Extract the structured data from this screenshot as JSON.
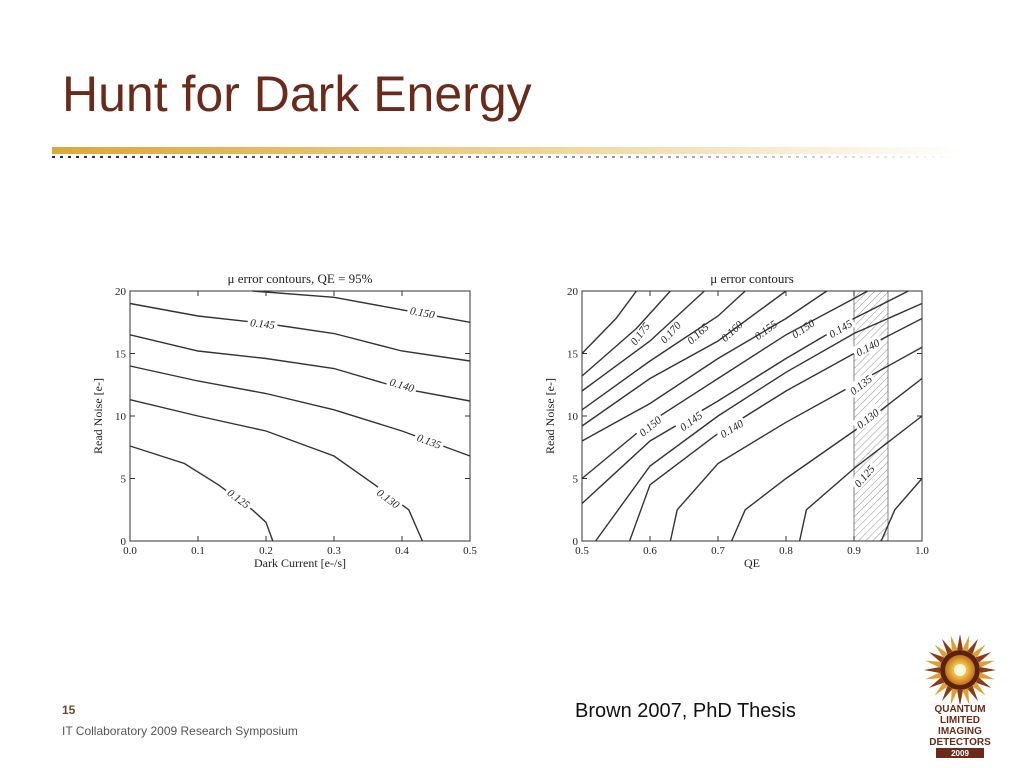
{
  "slide": {
    "title": "Hunt for Dark Energy",
    "slide_number": "15",
    "footer": "IT Collaboratory 2009 Research Symposium",
    "citation": "Brown 2007, PhD Thesis",
    "logo": {
      "lines": [
        "QUANTUM",
        "LIMITED",
        "IMAGING",
        "DETECTORS",
        "2009"
      ]
    },
    "colors": {
      "title": "#6b2a1a",
      "rule": "#d9b04a",
      "logo_brown": "#6b2a1a",
      "logo_gold": "#e0a030"
    }
  },
  "chart_data": [
    {
      "type": "contour",
      "title": "μ error contours, QE = 95%",
      "xlabel": "Dark Current [e-/s]",
      "ylabel": "Read Noise [e-]",
      "xlim": [
        0.0,
        0.5
      ],
      "ylim": [
        0,
        20
      ],
      "xticks": [
        "0.0",
        "0.1",
        "0.2",
        "0.3",
        "0.4",
        "0.5"
      ],
      "yticks": [
        "0",
        "5",
        "10",
        "15",
        "20"
      ],
      "contours": [
        {
          "level": "0.150",
          "points": [
            [
              0.18,
              20.0
            ],
            [
              0.3,
              19.5
            ],
            [
              0.4,
              18.5
            ],
            [
              0.5,
              17.5
            ]
          ],
          "label": [
            0.43,
            18.3
          ]
        },
        {
          "level": "0.145",
          "points": [
            [
              0.0,
              19.0
            ],
            [
              0.1,
              18.0
            ],
            [
              0.2,
              17.4
            ],
            [
              0.3,
              16.6
            ],
            [
              0.4,
              15.2
            ],
            [
              0.5,
              14.4
            ]
          ],
          "label": [
            0.195,
            17.4
          ]
        },
        {
          "level": "0.140",
          "points": [
            [
              0.0,
              16.5
            ],
            [
              0.1,
              15.2
            ],
            [
              0.2,
              14.6
            ],
            [
              0.3,
              13.8
            ],
            [
              0.4,
              12.2
            ],
            [
              0.5,
              11.2
            ]
          ],
          "label": [
            0.4,
            12.5
          ]
        },
        {
          "level": "0.135",
          "points": [
            [
              0.0,
              14.0
            ],
            [
              0.1,
              12.8
            ],
            [
              0.2,
              11.8
            ],
            [
              0.3,
              10.5
            ],
            [
              0.4,
              8.8
            ],
            [
              0.5,
              6.8
            ]
          ],
          "label": [
            0.44,
            8.0
          ]
        },
        {
          "level": "0.130",
          "points": [
            [
              0.0,
              11.3
            ],
            [
              0.1,
              10.0
            ],
            [
              0.2,
              8.8
            ],
            [
              0.3,
              6.8
            ],
            [
              0.36,
              4.5
            ],
            [
              0.41,
              2.5
            ],
            [
              0.43,
              0.0
            ]
          ],
          "label": [
            0.38,
            3.4
          ]
        },
        {
          "level": "0.125",
          "points": [
            [
              0.0,
              7.6
            ],
            [
              0.08,
              6.2
            ],
            [
              0.13,
              4.5
            ],
            [
              0.18,
              2.5
            ],
            [
              0.2,
              1.5
            ],
            [
              0.21,
              0.0
            ]
          ],
          "label": [
            0.16,
            3.4
          ]
        }
      ]
    },
    {
      "type": "contour",
      "title": "μ error contours",
      "xlabel": "QE",
      "ylabel": "Read Noise [e-]",
      "xlim": [
        0.5,
        1.0
      ],
      "ylim": [
        0,
        20
      ],
      "xticks": [
        "0.5",
        "0.6",
        "0.7",
        "0.8",
        "0.9",
        "1.0"
      ],
      "yticks": [
        "0",
        "5",
        "10",
        "15",
        "20"
      ],
      "hatched_band": [
        0.9,
        0.95
      ],
      "contours": [
        {
          "level": "0.175",
          "points": [
            [
              0.5,
              15.0
            ],
            [
              0.55,
              17.8
            ],
            [
              0.58,
              20.0
            ]
          ],
          "label": [
            0.585,
            16.6
          ]
        },
        {
          "level": "0.170",
          "points": [
            [
              0.5,
              13.2
            ],
            [
              0.58,
              17.0
            ],
            [
              0.63,
              20.0
            ]
          ],
          "label": [
            0.63,
            16.7
          ]
        },
        {
          "level": "0.165",
          "points": [
            [
              0.5,
              12.0
            ],
            [
              0.6,
              16.0
            ],
            [
              0.68,
              20.0
            ]
          ],
          "label": [
            0.67,
            16.6
          ]
        },
        {
          "level": "0.160",
          "points": [
            [
              0.5,
              10.5
            ],
            [
              0.6,
              14.4
            ],
            [
              0.7,
              18.0
            ],
            [
              0.74,
              20.0
            ]
          ],
          "label": [
            0.72,
            16.8
          ]
        },
        {
          "level": "0.155",
          "points": [
            [
              0.5,
              9.2
            ],
            [
              0.6,
              13.0
            ],
            [
              0.7,
              16.0
            ],
            [
              0.8,
              20.0
            ]
          ],
          "label": [
            0.77,
            16.9
          ]
        },
        {
          "level": "0.150",
          "points": [
            [
              0.5,
              8.0
            ],
            [
              0.6,
              11.0
            ],
            [
              0.7,
              14.6
            ],
            [
              0.8,
              17.8
            ],
            [
              0.86,
              20.0
            ]
          ],
          "label": [
            0.825,
            17.0
          ]
        },
        {
          "level": "0.150",
          "points": [
            [
              0.5,
              5.0
            ],
            [
              0.6,
              9.5
            ],
            [
              0.7,
              13.0
            ],
            [
              0.8,
              16.5
            ],
            [
              0.9,
              19.4
            ],
            [
              0.92,
              20.0
            ]
          ],
          "label": [
            0.6,
            9.2
          ]
        },
        {
          "level": "0.145",
          "points": [
            [
              0.5,
              3.0
            ],
            [
              0.6,
              8.0
            ],
            [
              0.7,
              11.2
            ],
            [
              0.8,
              14.6
            ],
            [
              0.9,
              17.8
            ],
            [
              0.98,
              20.0
            ]
          ],
          "label": [
            0.88,
            17.0
          ]
        },
        {
          "level": "0.145",
          "points": [
            [
              0.52,
              0.0
            ],
            [
              0.6,
              6.0
            ],
            [
              0.7,
              10.0
            ],
            [
              0.8,
              13.5
            ],
            [
              0.9,
              16.6
            ],
            [
              1.0,
              19.0
            ]
          ],
          "label": [
            0.66,
            9.6
          ]
        },
        {
          "level": "0.140",
          "points": [
            [
              0.57,
              0.0
            ],
            [
              0.6,
              4.5
            ],
            [
              0.7,
              8.6
            ],
            [
              0.8,
              12.0
            ],
            [
              0.9,
              15.0
            ],
            [
              1.0,
              17.8
            ]
          ],
          "label": [
            0.92,
            15.5
          ]
        },
        {
          "level": "0.140",
          "points": [
            [
              0.63,
              0.0
            ],
            [
              0.64,
              2.5
            ],
            [
              0.7,
              6.2
            ],
            [
              0.8,
              9.5
            ],
            [
              0.9,
              12.5
            ],
            [
              1.0,
              15.5
            ]
          ],
          "label": [
            0.72,
            9.0
          ]
        },
        {
          "level": "0.135",
          "points": [
            [
              0.72,
              0.0
            ],
            [
              0.74,
              2.5
            ],
            [
              0.8,
              5.0
            ],
            [
              0.9,
              8.8
            ],
            [
              1.0,
              13.0
            ]
          ],
          "label": [
            0.91,
            12.5
          ]
        },
        {
          "level": "0.130",
          "points": [
            [
              0.82,
              0.0
            ],
            [
              0.83,
              2.5
            ],
            [
              0.9,
              5.8
            ],
            [
              1.0,
              10.0
            ]
          ],
          "label": [
            0.92,
            9.8
          ]
        },
        {
          "level": "0.125",
          "points": [
            [
              0.94,
              0.0
            ],
            [
              0.96,
              2.5
            ],
            [
              1.0,
              5.0
            ]
          ],
          "label": [
            0.915,
            5.2
          ]
        }
      ]
    }
  ]
}
